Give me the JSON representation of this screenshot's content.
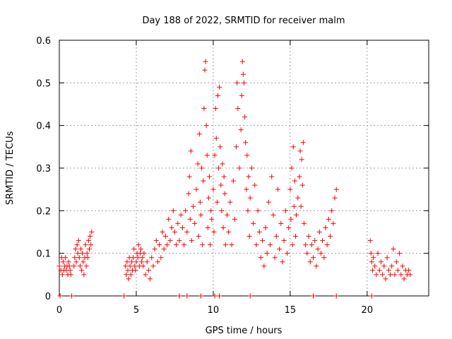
{
  "chart_data": {
    "type": "scatter",
    "title": "Day 188 of 2022, SRMTID for receiver malm",
    "xlabel": "GPS time / hours",
    "ylabel": "SRMTID / TECUs",
    "xlim": [
      0,
      24
    ],
    "ylim": [
      0,
      0.6
    ],
    "x_ticks": [
      0,
      5,
      10,
      15,
      20
    ],
    "y_ticks": [
      0,
      0.1,
      0.2,
      0.3,
      0.4,
      0.5,
      0.6
    ],
    "x_tick_labels": [
      "0",
      "5",
      "10",
      "15",
      "20"
    ],
    "y_tick_labels": [
      "0",
      "0.1",
      "0.2",
      "0.3",
      "0.4",
      "0.5",
      "0.6"
    ],
    "grid": true,
    "marker": "+",
    "color": "#ff0000",
    "series": [
      {
        "name": "SRMTID",
        "points": [
          [
            0.0,
            0.07
          ],
          [
            0.1,
            0.06
          ],
          [
            0.15,
            0.09
          ],
          [
            0.2,
            0.05
          ],
          [
            0.25,
            0.08
          ],
          [
            0.3,
            0.06
          ],
          [
            0.35,
            0.07
          ],
          [
            0.4,
            0.09
          ],
          [
            0.45,
            0.06
          ],
          [
            0.5,
            0.07
          ],
          [
            0.55,
            0.05
          ],
          [
            0.6,
            0.08
          ],
          [
            0.65,
            0.07
          ],
          [
            0.7,
            0.06
          ],
          [
            0.75,
            0.05
          ],
          [
            0.95,
            0.07
          ],
          [
            1.0,
            0.09
          ],
          [
            1.05,
            0.11
          ],
          [
            1.1,
            0.08
          ],
          [
            1.15,
            0.12
          ],
          [
            1.2,
            0.1
          ],
          [
            1.25,
            0.13
          ],
          [
            1.3,
            0.09
          ],
          [
            1.35,
            0.07
          ],
          [
            1.4,
            0.11
          ],
          [
            1.45,
            0.06
          ],
          [
            1.5,
            0.1
          ],
          [
            1.55,
            0.08
          ],
          [
            1.6,
            0.05
          ],
          [
            1.65,
            0.09
          ],
          [
            1.7,
            0.12
          ],
          [
            1.75,
            0.07
          ],
          [
            1.8,
            0.1
          ],
          [
            1.85,
            0.09
          ],
          [
            1.9,
            0.13
          ],
          [
            1.95,
            0.11
          ],
          [
            2.0,
            0.14
          ],
          [
            2.05,
            0.12
          ],
          [
            2.1,
            0.15
          ],
          [
            4.3,
            0.07
          ],
          [
            4.35,
            0.05
          ],
          [
            4.4,
            0.08
          ],
          [
            4.45,
            0.06
          ],
          [
            4.5,
            0.04
          ],
          [
            4.55,
            0.09
          ],
          [
            4.6,
            0.07
          ],
          [
            4.65,
            0.05
          ],
          [
            4.7,
            0.08
          ],
          [
            4.75,
            0.06
          ],
          [
            4.8,
            0.09
          ],
          [
            4.85,
            0.11
          ],
          [
            4.9,
            0.07
          ],
          [
            4.95,
            0.06
          ],
          [
            5.0,
            0.08
          ],
          [
            5.05,
            0.1
          ],
          [
            5.1,
            0.09
          ],
          [
            5.15,
            0.12
          ],
          [
            5.2,
            0.07
          ],
          [
            5.25,
            0.1
          ],
          [
            5.3,
            0.11
          ],
          [
            5.35,
            0.08
          ],
          [
            5.4,
            0.09
          ],
          [
            5.45,
            0.07
          ],
          [
            5.5,
            0.1
          ],
          [
            5.6,
            0.05
          ],
          [
            5.7,
            0.08
          ],
          [
            5.8,
            0.06
          ],
          [
            5.9,
            0.04
          ],
          [
            6.0,
            0.09
          ],
          [
            6.1,
            0.07
          ],
          [
            6.2,
            0.11
          ],
          [
            6.3,
            0.13
          ],
          [
            6.4,
            0.08
          ],
          [
            6.5,
            0.12
          ],
          [
            6.6,
            0.09
          ],
          [
            6.7,
            0.15
          ],
          [
            6.8,
            0.11
          ],
          [
            6.9,
            0.14
          ],
          [
            7.0,
            0.12
          ],
          [
            7.1,
            0.18
          ],
          [
            7.2,
            0.13
          ],
          [
            7.3,
            0.16
          ],
          [
            7.4,
            0.2
          ],
          [
            7.5,
            0.15
          ],
          [
            7.6,
            0.12
          ],
          [
            7.7,
            0.17
          ],
          [
            7.8,
            0.13
          ],
          [
            7.9,
            0.19
          ],
          [
            8.0,
            0.16
          ],
          [
            8.1,
            0.12
          ],
          [
            8.2,
            0.2
          ],
          [
            8.3,
            0.15
          ],
          [
            8.4,
            0.24
          ],
          [
            8.45,
            0.28
          ],
          [
            8.5,
            0.18
          ],
          [
            8.55,
            0.34
          ],
          [
            8.6,
            0.13
          ],
          [
            8.7,
            0.21
          ],
          [
            8.8,
            0.17
          ],
          [
            8.9,
            0.25
          ],
          [
            9.0,
            0.31
          ],
          [
            9.05,
            0.14
          ],
          [
            9.1,
            0.38
          ],
          [
            9.15,
            0.22
          ],
          [
            9.2,
            0.19
          ],
          [
            9.25,
            0.3
          ],
          [
            9.3,
            0.12
          ],
          [
            9.35,
            0.27
          ],
          [
            9.4,
            0.44
          ],
          [
            9.45,
            0.53
          ],
          [
            9.5,
            0.55
          ],
          [
            9.55,
            0.4
          ],
          [
            9.6,
            0.33
          ],
          [
            9.65,
            0.16
          ],
          [
            9.7,
            0.23
          ],
          [
            9.75,
            0.28
          ],
          [
            9.8,
            0.12
          ],
          [
            9.85,
            0.2
          ],
          [
            9.9,
            0.18
          ],
          [
            10.0,
            0.25
          ],
          [
            10.05,
            0.15
          ],
          [
            10.1,
            0.33
          ],
          [
            10.15,
            0.44
          ],
          [
            10.2,
            0.37
          ],
          [
            10.25,
            0.22
          ],
          [
            10.3,
            0.47
          ],
          [
            10.35,
            0.3
          ],
          [
            10.4,
            0.49
          ],
          [
            10.45,
            0.35
          ],
          [
            10.5,
            0.26
          ],
          [
            10.55,
            0.2
          ],
          [
            10.6,
            0.31
          ],
          [
            10.65,
            0.16
          ],
          [
            10.7,
            0.28
          ],
          [
            10.75,
            0.24
          ],
          [
            10.8,
            0.12
          ],
          [
            10.9,
            0.19
          ],
          [
            11.0,
            0.15
          ],
          [
            11.1,
            0.22
          ],
          [
            11.2,
            0.12
          ],
          [
            11.3,
            0.27
          ],
          [
            11.4,
            0.18
          ],
          [
            11.5,
            0.35
          ],
          [
            11.55,
            0.5
          ],
          [
            11.6,
            0.44
          ],
          [
            11.7,
            0.3
          ],
          [
            11.8,
            0.39
          ],
          [
            11.85,
            0.47
          ],
          [
            11.9,
            0.55
          ],
          [
            11.95,
            0.52
          ],
          [
            12.0,
            0.5
          ],
          [
            12.05,
            0.42
          ],
          [
            12.1,
            0.36
          ],
          [
            12.15,
            0.25
          ],
          [
            12.2,
            0.33
          ],
          [
            12.25,
            0.2
          ],
          [
            12.3,
            0.28
          ],
          [
            12.35,
            0.14
          ],
          [
            12.4,
            0.23
          ],
          [
            12.5,
            0.3
          ],
          [
            12.6,
            0.17
          ],
          [
            12.7,
            0.26
          ],
          [
            12.8,
            0.12
          ],
          [
            12.9,
            0.2
          ],
          [
            13.0,
            0.15
          ],
          [
            13.1,
            0.09
          ],
          [
            13.2,
            0.13
          ],
          [
            13.3,
            0.07
          ],
          [
            13.4,
            0.16
          ],
          [
            13.5,
            0.1
          ],
          [
            13.6,
            0.22
          ],
          [
            13.7,
            0.12
          ],
          [
            13.8,
            0.28
          ],
          [
            13.9,
            0.19
          ],
          [
            14.0,
            0.09
          ],
          [
            14.1,
            0.14
          ],
          [
            14.2,
            0.25
          ],
          [
            14.3,
            0.11
          ],
          [
            14.4,
            0.17
          ],
          [
            14.5,
            0.08
          ],
          [
            14.6,
            0.13
          ],
          [
            14.7,
            0.2
          ],
          [
            14.8,
            0.1
          ],
          [
            14.9,
            0.16
          ],
          [
            15.0,
            0.25
          ],
          [
            15.05,
            0.18
          ],
          [
            15.1,
            0.3
          ],
          [
            15.15,
            0.12
          ],
          [
            15.2,
            0.35
          ],
          [
            15.25,
            0.21
          ],
          [
            15.3,
            0.27
          ],
          [
            15.35,
            0.14
          ],
          [
            15.4,
            0.19
          ],
          [
            15.5,
            0.23
          ],
          [
            15.6,
            0.28
          ],
          [
            15.65,
            0.34
          ],
          [
            15.7,
            0.21
          ],
          [
            15.75,
            0.32
          ],
          [
            15.8,
            0.26
          ],
          [
            15.85,
            0.36
          ],
          [
            15.9,
            0.17
          ],
          [
            16.0,
            0.12
          ],
          [
            16.1,
            0.1
          ],
          [
            16.2,
            0.14
          ],
          [
            16.3,
            0.08
          ],
          [
            16.4,
            0.12
          ],
          [
            16.5,
            0.09
          ],
          [
            16.6,
            0.13
          ],
          [
            16.7,
            0.07
          ],
          [
            16.8,
            0.11
          ],
          [
            16.9,
            0.15
          ],
          [
            17.0,
            0.1
          ],
          [
            17.1,
            0.13
          ],
          [
            17.2,
            0.09
          ],
          [
            17.3,
            0.16
          ],
          [
            17.4,
            0.12
          ],
          [
            17.5,
            0.18
          ],
          [
            17.6,
            0.14
          ],
          [
            17.7,
            0.2
          ],
          [
            17.8,
            0.17
          ],
          [
            17.9,
            0.23
          ],
          [
            18.0,
            0.25
          ],
          [
            20.2,
            0.13
          ],
          [
            20.25,
            0.1
          ],
          [
            20.3,
            0.08
          ],
          [
            20.35,
            0.06
          ],
          [
            20.4,
            0.09
          ],
          [
            20.5,
            0.07
          ],
          [
            20.6,
            0.05
          ],
          [
            20.7,
            0.1
          ],
          [
            20.8,
            0.06
          ],
          [
            20.9,
            0.08
          ],
          [
            21.0,
            0.05
          ],
          [
            21.1,
            0.07
          ],
          [
            21.2,
            0.04
          ],
          [
            21.3,
            0.09
          ],
          [
            21.4,
            0.06
          ],
          [
            21.5,
            0.05
          ],
          [
            21.6,
            0.07
          ],
          [
            21.7,
            0.11
          ],
          [
            21.8,
            0.05
          ],
          [
            21.9,
            0.08
          ],
          [
            22.0,
            0.06
          ],
          [
            22.1,
            0.1
          ],
          [
            22.2,
            0.05
          ],
          [
            22.3,
            0.07
          ],
          [
            22.4,
            0.04
          ],
          [
            22.5,
            0.06
          ],
          [
            22.6,
            0.05
          ],
          [
            22.7,
            0.06
          ],
          [
            22.8,
            0.05
          ],
          [
            0.05,
            0.0
          ],
          [
            0.8,
            0.0
          ],
          [
            4.2,
            0.0
          ],
          [
            7.8,
            0.0
          ],
          [
            8.3,
            0.0
          ],
          [
            9.2,
            0.0
          ],
          [
            10.1,
            0.0
          ],
          [
            10.4,
            0.0
          ],
          [
            12.4,
            0.0
          ],
          [
            16.5,
            0.0
          ],
          [
            18.0,
            0.0
          ],
          [
            20.3,
            0.0
          ]
        ]
      }
    ]
  }
}
